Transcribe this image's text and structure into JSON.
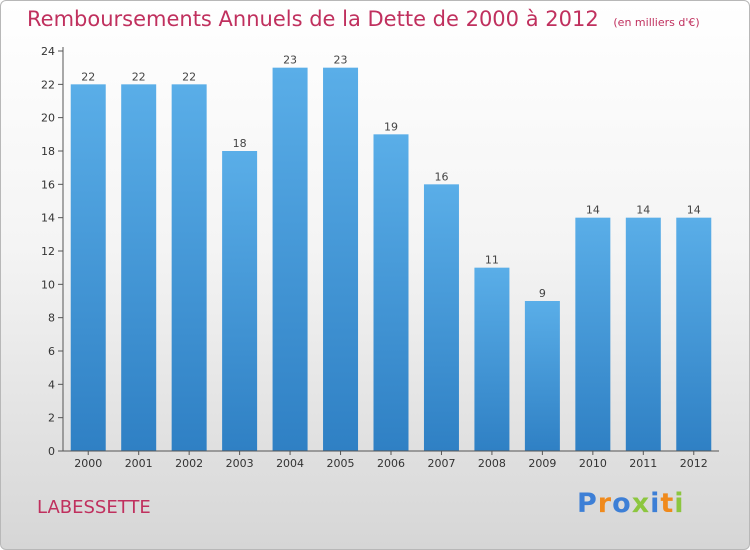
{
  "title": "Remboursements Annuels de la Dette de 2000 à 2012",
  "subtitle": "(en milliers d'€)",
  "commune": "LABESSETTE",
  "logo": {
    "letters": [
      "P",
      "r",
      "o",
      "x",
      "i",
      "t",
      "i"
    ],
    "colors": [
      "#3d7fd6",
      "#f08a1c",
      "#3d7fd6",
      "#8cc63f",
      "#3d7fd6",
      "#f08a1c",
      "#8cc63f"
    ]
  },
  "colors": {
    "title": "#c0305e",
    "bar_light": "#5aaee8",
    "bar_dark": "#2f80c4"
  },
  "chart_data": {
    "type": "bar",
    "categories": [
      "2000",
      "2001",
      "2002",
      "2003",
      "2004",
      "2005",
      "2006",
      "2007",
      "2008",
      "2009",
      "2010",
      "2011",
      "2012"
    ],
    "values": [
      22,
      22,
      22,
      18,
      23,
      23,
      19,
      16,
      11,
      9,
      14,
      14,
      14
    ],
    "y_ticks": [
      "0",
      "2",
      "4",
      "6",
      "8",
      "10",
      "12",
      "14",
      "16",
      "18",
      "20",
      "22",
      "24"
    ],
    "ylim": [
      0,
      24
    ],
    "grid": false
  }
}
